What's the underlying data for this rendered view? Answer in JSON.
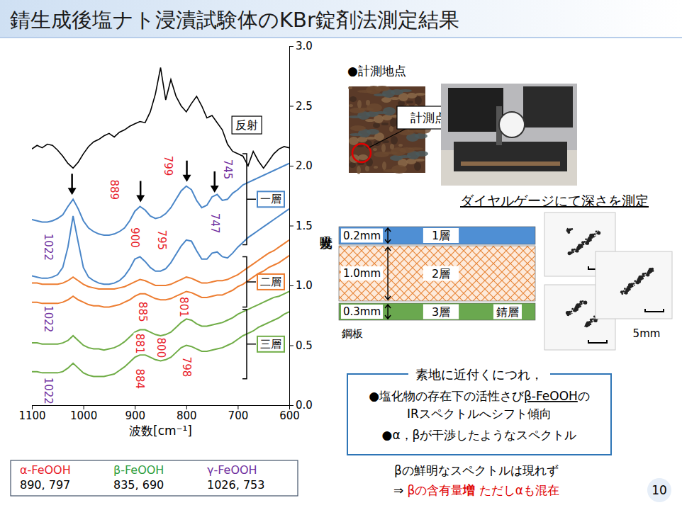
{
  "slide": {
    "title": "錆生成後塩ナト浸漬試験体のKBr錠剤法測定結果",
    "page_number": "10"
  },
  "chart_data": {
    "type": "line",
    "x_label": "波数[cm⁻¹]",
    "y_label": "吸光度",
    "x": [
      1100,
      1090,
      1080,
      1070,
      1060,
      1050,
      1040,
      1030,
      1020,
      1010,
      1000,
      990,
      980,
      970,
      960,
      950,
      940,
      930,
      920,
      910,
      900,
      890,
      880,
      870,
      860,
      850,
      840,
      830,
      820,
      810,
      800,
      790,
      780,
      770,
      760,
      750,
      740,
      730,
      720,
      710,
      700,
      690,
      680,
      670,
      660,
      650,
      640,
      630,
      620,
      610,
      600
    ],
    "xlim": [
      1100,
      600
    ],
    "xticks": [
      1100,
      1000,
      900,
      800,
      700,
      600
    ],
    "ylim": [
      0,
      3
    ],
    "yticks": [
      {
        "value": 0,
        "label": "0.0"
      },
      0.5,
      {
        "value": 1,
        "label": "1.0"
      },
      1.5,
      {
        "value": 2,
        "label": "2.0"
      },
      2.5,
      {
        "value": 3,
        "label": "3.0"
      }
    ],
    "grid": false,
    "series": [
      {
        "name": "反射",
        "color": "#000000",
        "values": [
          2.14,
          2.17,
          2.15,
          2.18,
          2.17,
          2.13,
          2.08,
          2.02,
          1.98,
          2.03,
          2.1,
          2.16,
          2.2,
          2.22,
          2.25,
          2.27,
          2.24,
          2.28,
          2.3,
          2.33,
          2.35,
          2.37,
          2.36,
          2.45,
          2.6,
          2.82,
          2.55,
          2.72,
          2.58,
          2.5,
          2.45,
          2.52,
          2.58,
          2.5,
          2.4,
          2.42,
          2.36,
          2.3,
          2.18,
          2.12,
          2.1,
          2.08,
          2.0,
          2.12,
          2.04,
          1.98,
          2.04,
          2.1,
          2.14,
          2.16,
          2.15
        ]
      },
      {
        "color": "#4a86c8",
        "values": [
          1.55,
          1.54,
          1.53,
          1.53,
          1.54,
          1.56,
          1.59,
          1.66,
          1.72,
          1.64,
          1.54,
          1.48,
          1.45,
          1.43,
          1.42,
          1.42,
          1.43,
          1.45,
          1.48,
          1.54,
          1.62,
          1.66,
          1.63,
          1.58,
          1.56,
          1.57,
          1.6,
          1.65,
          1.72,
          1.79,
          1.83,
          1.8,
          1.71,
          1.65,
          1.67,
          1.74,
          1.76,
          1.71,
          1.72,
          1.77,
          1.8,
          1.84,
          1.86,
          1.88,
          1.9,
          1.92,
          1.94,
          1.96,
          1.98,
          2.0,
          2.02
        ]
      },
      {
        "color": "#4a86c8",
        "values": [
          1.08,
          1.07,
          1.06,
          1.06,
          1.07,
          1.09,
          1.15,
          1.32,
          1.58,
          1.36,
          1.15,
          1.07,
          1.04,
          1.02,
          1.01,
          1.01,
          1.02,
          1.04,
          1.08,
          1.14,
          1.22,
          1.24,
          1.2,
          1.15,
          1.12,
          1.12,
          1.14,
          1.19,
          1.26,
          1.33,
          1.38,
          1.37,
          1.29,
          1.22,
          1.22,
          1.27,
          1.28,
          1.24,
          1.23,
          1.27,
          1.32,
          1.36,
          1.4,
          1.43,
          1.46,
          1.49,
          1.52,
          1.55,
          1.58,
          1.61,
          1.64
        ]
      },
      {
        "color": "#ed7d31",
        "values": [
          1.02,
          1.02,
          1.01,
          1.01,
          1.01,
          1.01,
          1.02,
          1.04,
          1.07,
          1.04,
          1.01,
          0.99,
          0.98,
          0.97,
          0.97,
          0.97,
          0.97,
          0.98,
          0.99,
          1.01,
          1.03,
          1.05,
          1.04,
          1.02,
          1.0,
          1.0,
          1.0,
          1.01,
          1.03,
          1.05,
          1.07,
          1.06,
          1.04,
          1.02,
          1.02,
          1.03,
          1.04,
          1.04,
          1.05,
          1.07,
          1.09,
          1.12,
          1.15,
          1.18,
          1.21,
          1.24,
          1.27,
          1.29,
          1.32,
          1.35,
          1.38
        ]
      },
      {
        "color": "#ed7d31",
        "values": [
          0.86,
          0.86,
          0.85,
          0.85,
          0.85,
          0.85,
          0.86,
          0.88,
          0.91,
          0.88,
          0.86,
          0.84,
          0.83,
          0.83,
          0.82,
          0.82,
          0.83,
          0.84,
          0.86,
          0.88,
          0.91,
          0.93,
          0.93,
          0.91,
          0.89,
          0.88,
          0.88,
          0.89,
          0.91,
          0.93,
          0.95,
          0.94,
          0.92,
          0.9,
          0.9,
          0.91,
          0.92,
          0.92,
          0.94,
          0.96,
          0.99,
          1.01,
          1.04,
          1.07,
          1.1,
          1.12,
          1.15,
          1.17,
          1.19,
          1.22,
          1.25
        ]
      },
      {
        "color": "#70ad47",
        "values": [
          0.52,
          0.52,
          0.51,
          0.51,
          0.51,
          0.51,
          0.52,
          0.54,
          0.58,
          0.54,
          0.5,
          0.48,
          0.47,
          0.47,
          0.46,
          0.47,
          0.48,
          0.5,
          0.53,
          0.57,
          0.61,
          0.63,
          0.63,
          0.61,
          0.59,
          0.58,
          0.59,
          0.61,
          0.65,
          0.69,
          0.72,
          0.71,
          0.68,
          0.66,
          0.66,
          0.67,
          0.68,
          0.69,
          0.71,
          0.73,
          0.76,
          0.78,
          0.8,
          0.82,
          0.84,
          0.86,
          0.88,
          0.9,
          0.91,
          0.93,
          0.95
        ]
      },
      {
        "color": "#70ad47",
        "values": [
          0.28,
          0.28,
          0.27,
          0.27,
          0.27,
          0.27,
          0.28,
          0.31,
          0.35,
          0.31,
          0.27,
          0.25,
          0.24,
          0.24,
          0.24,
          0.25,
          0.26,
          0.29,
          0.32,
          0.36,
          0.4,
          0.42,
          0.42,
          0.4,
          0.38,
          0.37,
          0.38,
          0.4,
          0.44,
          0.48,
          0.5,
          0.49,
          0.47,
          0.45,
          0.45,
          0.46,
          0.47,
          0.48,
          0.5,
          0.52,
          0.55,
          0.58,
          0.6,
          0.62,
          0.65,
          0.67,
          0.69,
          0.71,
          0.73,
          0.76,
          0.78
        ]
      }
    ],
    "brackets": [
      {
        "label": "一層",
        "color": "#4a86c8",
        "range": [
          1.34,
          2.1
        ]
      },
      {
        "label": "二層",
        "color": "#ed7d31",
        "range": [
          0.82,
          1.24
        ]
      },
      {
        "label": "三層",
        "color": "#70ad47",
        "range": [
          0.22,
          0.8
        ]
      }
    ],
    "arrows": [
      1022,
      889,
      799,
      745
    ],
    "annotations": [
      {
        "text": "889",
        "x": 940,
        "y": 1.8,
        "color": "#e8202a"
      },
      {
        "text": "799",
        "x": 835,
        "y": 2.0,
        "color": "#e8202a"
      },
      {
        "text": "745",
        "x": 720,
        "y": 1.97,
        "color": "#7030a0"
      },
      {
        "text": "1022",
        "x": 1068,
        "y": 1.32,
        "color": "#7030a0"
      },
      {
        "text": "900",
        "x": 900,
        "y": 1.4,
        "color": "#e8202a"
      },
      {
        "text": "795",
        "x": 848,
        "y": 1.38,
        "color": "#e8202a"
      },
      {
        "text": "747",
        "x": 745,
        "y": 1.52,
        "color": "#7030a0"
      },
      {
        "text": "1022",
        "x": 1068,
        "y": 0.72,
        "color": "#7030a0"
      },
      {
        "text": "885",
        "x": 885,
        "y": 0.78,
        "color": "#e8202a"
      },
      {
        "text": "801",
        "x": 805,
        "y": 0.82,
        "color": "#e8202a"
      },
      {
        "text": "1022",
        "x": 1068,
        "y": 0.12,
        "color": "#7030a0"
      },
      {
        "text": "881",
        "x": 890,
        "y": 0.515,
        "color": "#e8202a"
      },
      {
        "text": "884",
        "x": 890,
        "y": 0.22,
        "color": "#e8202a"
      },
      {
        "text": "800",
        "x": 850,
        "y": 0.48,
        "color": "#e8202a"
      },
      {
        "text": "798",
        "x": 800,
        "y": 0.32,
        "color": "#e8202a"
      }
    ],
    "reference_peaks": [
      {
        "name": "α-FeOOH",
        "color": "#e8202a",
        "peaks": "890, 797"
      },
      {
        "name": "β-FeOOH",
        "color": "#2e9e3e",
        "peaks": "835, 690"
      },
      {
        "name": "γ-FeOOH",
        "color": "#7030a0",
        "peaks": "1026, 753"
      }
    ]
  },
  "measurement": {
    "heading": "●計測地点",
    "point_label": "計測点",
    "caption": "ダイヤルゲージにて深さを測定"
  },
  "layers": {
    "items": [
      {
        "thickness": "0.2mm",
        "label": "1層"
      },
      {
        "thickness": "1.0mm",
        "label": "2層"
      },
      {
        "thickness": "0.3mm",
        "label": "3層",
        "note": "錆層"
      }
    ],
    "substrate": "鋼板"
  },
  "micrographs": {
    "scale_label": "5mm"
  },
  "findings": {
    "heading": "素地に近付くにつれ，",
    "lines": [
      [
        {
          "text": "●塩化物の存在下の活性さび"
        },
        {
          "text": "β-FeOOH",
          "underline": true
        },
        {
          "text": "の"
        }
      ],
      [
        {
          "text": "IRスペクトルへシフト傾向"
        }
      ],
      [
        {
          "text": "●α，βが干渉したようなスペクトル"
        }
      ]
    ]
  },
  "conclusion": {
    "lines": [
      [
        {
          "text": "βの鮮明なスペクトルは現れず"
        }
      ],
      [
        {
          "text": "⇒ "
        },
        {
          "text": "βの含有量",
          "color": "#e00000"
        },
        {
          "text": "増",
          "color": "#e00000",
          "bold": true
        },
        {
          "text": " ただしαも混在",
          "color": "#e00000"
        }
      ]
    ]
  }
}
